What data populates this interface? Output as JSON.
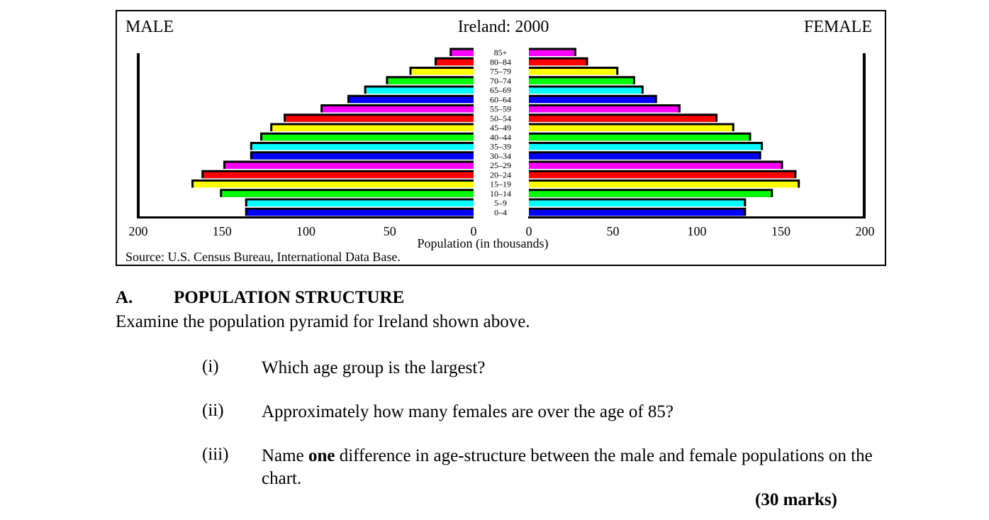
{
  "chart_data": {
    "type": "bar",
    "title": "Ireland: 2000",
    "left_label": "MALE",
    "right_label": "FEMALE",
    "xlabel": "Population (in thousands)",
    "source": "Source: U.S. Census Bureau, International Data Base.",
    "xlim": [
      0,
      200
    ],
    "ticks": [
      200,
      150,
      100,
      50,
      0
    ],
    "categories": [
      "0–4",
      "5–9",
      "10–14",
      "15–19",
      "20–24",
      "25–29",
      "30–34",
      "35–39",
      "40–44",
      "45–49",
      "50–54",
      "55–59",
      "60–64",
      "65–69",
      "70–74",
      "75–79",
      "80–84",
      "85+"
    ],
    "series": [
      {
        "name": "MALE",
        "values": [
          135,
          135,
          150,
          167,
          161,
          148,
          132,
          132,
          126,
          120,
          112,
          90,
          74,
          64,
          51,
          37,
          22,
          13
        ]
      },
      {
        "name": "FEMALE",
        "values": [
          128,
          128,
          144,
          160,
          158,
          150,
          137,
          138,
          131,
          121,
          111,
          89,
          75,
          67,
          62,
          52,
          34,
          27
        ]
      }
    ],
    "colors": [
      "#0000ff",
      "#00ffff",
      "#00ff00",
      "#ffff00",
      "#ff0000",
      "#ff00ff",
      "#0000ff",
      "#00ffff",
      "#00ff00",
      "#ffff00",
      "#ff0000",
      "#ff00ff",
      "#0000ff",
      "#00ffff",
      "#00ff00",
      "#ffff00",
      "#ff0000",
      "#ff00ff"
    ],
    "grid": false,
    "legend": "none"
  },
  "section": {
    "letter": "A.",
    "title": "POPULATION STRUCTURE",
    "instruction": "Examine the population pyramid for Ireland shown above."
  },
  "questions": [
    {
      "num": "(i)",
      "text": "Which age group is the largest?"
    },
    {
      "num": "(ii)",
      "text": "Approximately how many females are over the age of 85?"
    },
    {
      "num": "(iii)",
      "pre": "Name ",
      "bold": "one",
      "post": " difference in age-structure between the male and female populations on the chart."
    }
  ],
  "marks": "(30 marks)"
}
